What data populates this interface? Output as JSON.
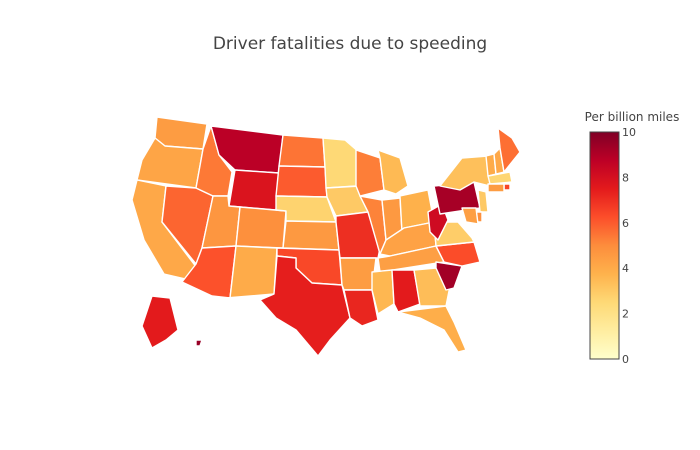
{
  "chart_data": {
    "type": "choropleth",
    "title": "Driver fatalities due to speeding",
    "colorbar": {
      "title": "Per billion miles",
      "range": [
        0,
        10
      ],
      "ticks": [
        "0",
        "2",
        "4",
        "6",
        "8",
        "10"
      ],
      "colorscale": [
        "#ffffcc",
        "#ffeda0",
        "#fed976",
        "#feb24c",
        "#fd8d3c",
        "#fc4e2a",
        "#e31a1c",
        "#bd0026",
        "#800026"
      ]
    },
    "states": [
      {
        "abbr": "WA",
        "value": 4.5
      },
      {
        "abbr": "OR",
        "value": 4.2
      },
      {
        "abbr": "CA",
        "value": 4.1
      },
      {
        "abbr": "NV",
        "value": 5.8
      },
      {
        "abbr": "ID",
        "value": 5.4
      },
      {
        "abbr": "MT",
        "value": 8.8
      },
      {
        "abbr": "WY",
        "value": 7.8
      },
      {
        "abbr": "UT",
        "value": 4.7
      },
      {
        "abbr": "AZ",
        "value": 6.2
      },
      {
        "abbr": "CO",
        "value": 4.9
      },
      {
        "abbr": "NM",
        "value": 4.0
      },
      {
        "abbr": "ND",
        "value": 5.5
      },
      {
        "abbr": "SD",
        "value": 6.0
      },
      {
        "abbr": "NE",
        "value": 2.7
      },
      {
        "abbr": "KS",
        "value": 4.6
      },
      {
        "abbr": "OK",
        "value": 6.4
      },
      {
        "abbr": "TX",
        "value": 7.4
      },
      {
        "abbr": "MN",
        "value": 2.5
      },
      {
        "abbr": "IA",
        "value": 3.0
      },
      {
        "abbr": "MO",
        "value": 7.0
      },
      {
        "abbr": "AR",
        "value": 4.5
      },
      {
        "abbr": "LA",
        "value": 7.2
      },
      {
        "abbr": "WI",
        "value": 5.3
      },
      {
        "abbr": "IL",
        "value": 5.2
      },
      {
        "abbr": "MI",
        "value": 3.5
      },
      {
        "abbr": "IN",
        "value": 4.6
      },
      {
        "abbr": "OH",
        "value": 3.8
      },
      {
        "abbr": "KY",
        "value": 4.3
      },
      {
        "abbr": "TN",
        "value": 4.4
      },
      {
        "abbr": "MS",
        "value": 3.6
      },
      {
        "abbr": "AL",
        "value": 7.5
      },
      {
        "abbr": "GA",
        "value": 3.4
      },
      {
        "abbr": "FL",
        "value": 3.9
      },
      {
        "abbr": "SC",
        "value": 9.3
      },
      {
        "abbr": "NC",
        "value": 6.3
      },
      {
        "abbr": "VA",
        "value": 2.9
      },
      {
        "abbr": "WV",
        "value": 8.2
      },
      {
        "abbr": "PA",
        "value": 9.2
      },
      {
        "abbr": "NY",
        "value": 3.3
      },
      {
        "abbr": "VT",
        "value": 4.0
      },
      {
        "abbr": "NH",
        "value": 4.1
      },
      {
        "abbr": "ME",
        "value": 5.6
      },
      {
        "abbr": "MA",
        "value": 2.6
      },
      {
        "abbr": "RI",
        "value": 6.5
      },
      {
        "abbr": "CT",
        "value": 4.5
      },
      {
        "abbr": "NJ",
        "value": 3.0
      },
      {
        "abbr": "DE",
        "value": 4.9
      },
      {
        "abbr": "MD",
        "value": 4.4
      },
      {
        "abbr": "AK",
        "value": 7.5
      },
      {
        "abbr": "HI",
        "value": 9.5
      }
    ]
  }
}
